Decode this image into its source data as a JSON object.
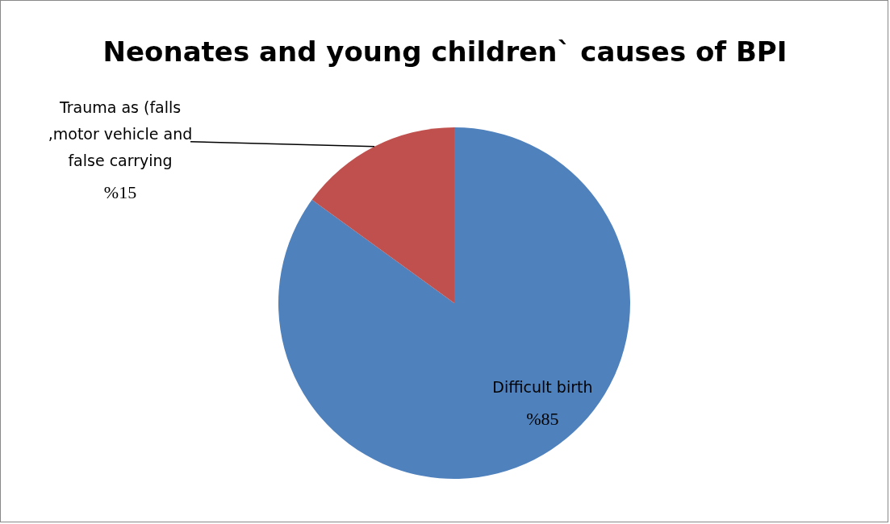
{
  "chart_data": {
    "type": "pie",
    "title": "Neonates and young children` causes of BPI",
    "categories": [
      "Difficult birth",
      "Trauma as (falls ,motor vehicle and false carrying"
    ],
    "values": [
      85,
      15
    ],
    "colors": [
      "#4f81bd",
      "#c0504d"
    ],
    "value_labels": [
      "%85",
      "%15"
    ]
  }
}
